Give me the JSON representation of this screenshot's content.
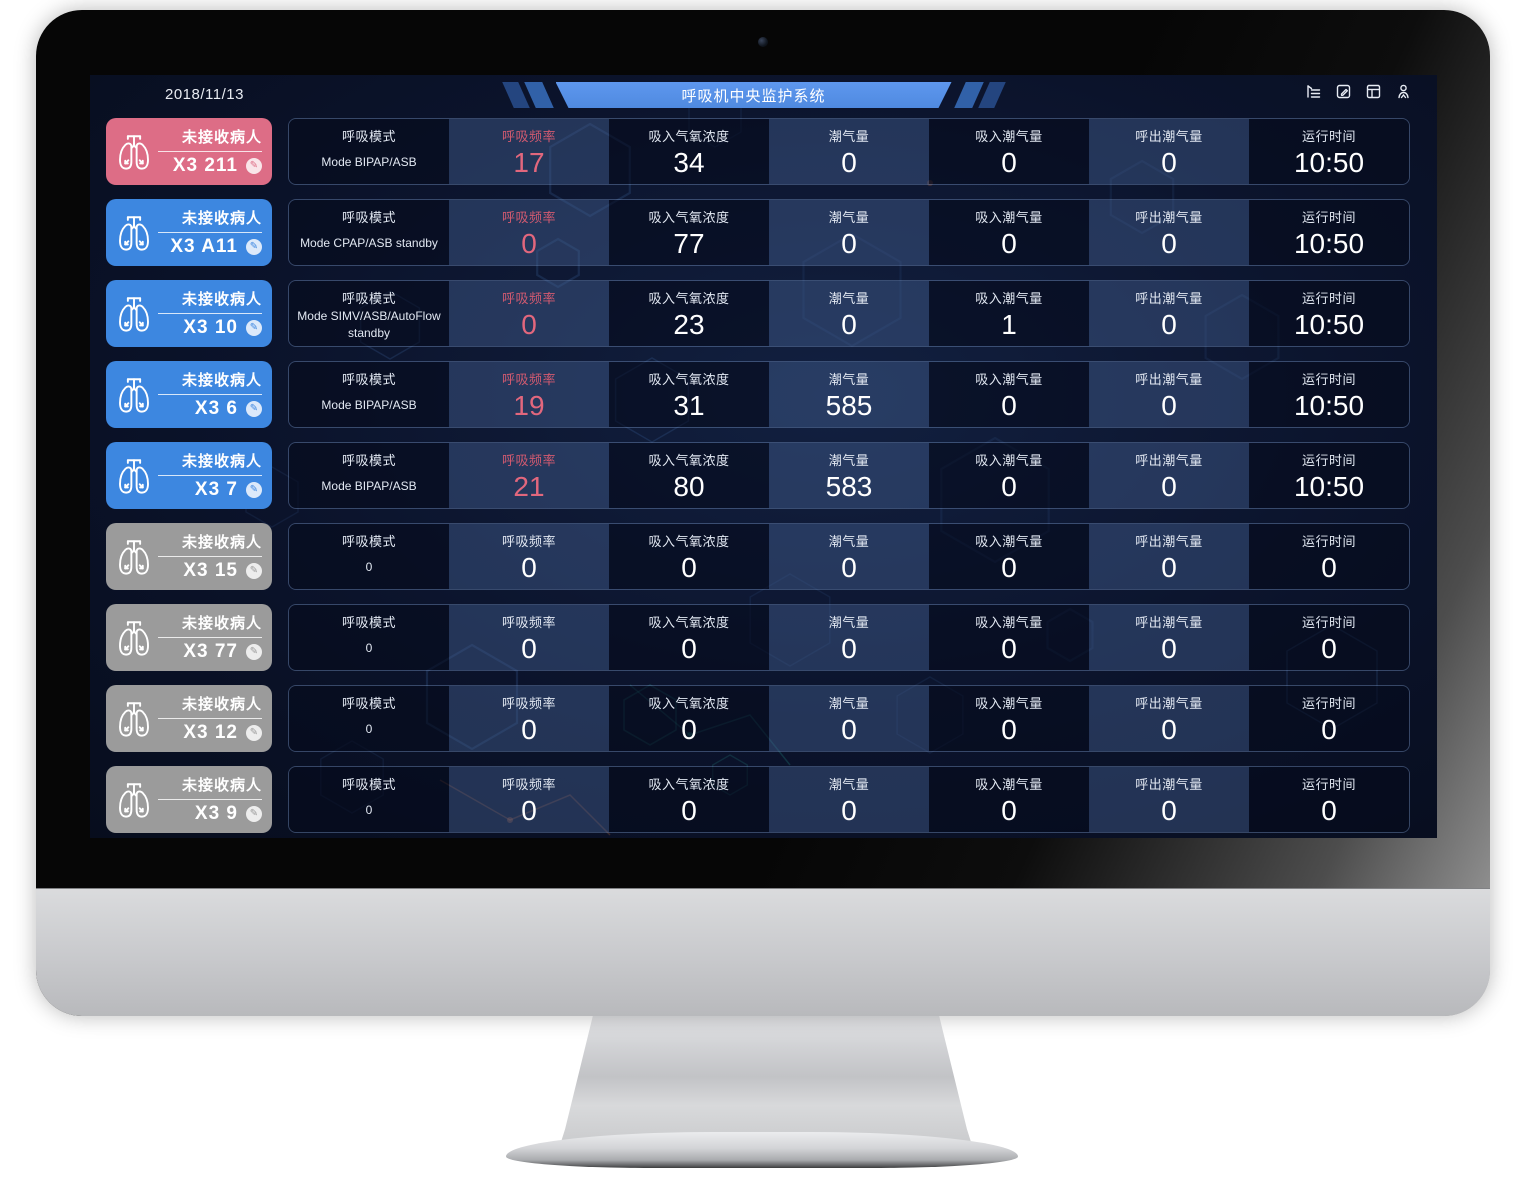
{
  "topbar": {
    "date": "2018/11/13",
    "title": "呼吸机中央监护系统",
    "icons": [
      {
        "name": "tree-menu-icon"
      },
      {
        "name": "edit-note-icon"
      },
      {
        "name": "layout-grid-icon"
      },
      {
        "name": "user-icon"
      }
    ]
  },
  "table": {
    "status_label": "未接收病人",
    "columns": [
      {
        "key": "mode",
        "label": "呼吸模式"
      },
      {
        "key": "rate",
        "label": "呼吸频率"
      },
      {
        "key": "fio2",
        "label": "吸入气氧浓度"
      },
      {
        "key": "tidal",
        "label": "潮气量"
      },
      {
        "key": "insp_tidal",
        "label": "吸入潮气量"
      },
      {
        "key": "exp_tidal",
        "label": "呼出潮气量"
      },
      {
        "key": "runtime",
        "label": "运行时间"
      }
    ],
    "rows": [
      {
        "id": "X3 211",
        "status": "alarm",
        "mode": "Mode BIPAP/ASB",
        "rate": "17",
        "fio2": "34",
        "tidal": "0",
        "insp_tidal": "0",
        "exp_tidal": "0",
        "runtime": "10:50"
      },
      {
        "id": "X3 A11",
        "status": "online",
        "mode": "Mode CPAP/ASB standby",
        "rate": "0",
        "fio2": "77",
        "tidal": "0",
        "insp_tidal": "0",
        "exp_tidal": "0",
        "runtime": "10:50"
      },
      {
        "id": "X3 10",
        "status": "online",
        "mode": "Mode SIMV/ASB/AutoFlow standby",
        "rate": "0",
        "fio2": "23",
        "tidal": "0",
        "insp_tidal": "1",
        "exp_tidal": "0",
        "runtime": "10:50"
      },
      {
        "id": "X3 6",
        "status": "online",
        "mode": "Mode BIPAP/ASB",
        "rate": "19",
        "fio2": "31",
        "tidal": "585",
        "insp_tidal": "0",
        "exp_tidal": "0",
        "runtime": "10:50"
      },
      {
        "id": "X3 7",
        "status": "online",
        "mode": "Mode BIPAP/ASB",
        "rate": "21",
        "fio2": "80",
        "tidal": "583",
        "insp_tidal": "0",
        "exp_tidal": "0",
        "runtime": "10:50"
      },
      {
        "id": "X3 15",
        "status": "offline",
        "mode": "0",
        "rate": "0",
        "fio2": "0",
        "tidal": "0",
        "insp_tidal": "0",
        "exp_tidal": "0",
        "runtime": "0"
      },
      {
        "id": "X3 77",
        "status": "offline",
        "mode": "0",
        "rate": "0",
        "fio2": "0",
        "tidal": "0",
        "insp_tidal": "0",
        "exp_tidal": "0",
        "runtime": "0"
      },
      {
        "id": "X3 12",
        "status": "offline",
        "mode": "0",
        "rate": "0",
        "fio2": "0",
        "tidal": "0",
        "insp_tidal": "0",
        "exp_tidal": "0",
        "runtime": "0"
      },
      {
        "id": "X3 9",
        "status": "offline",
        "mode": "0",
        "rate": "0",
        "fio2": "0",
        "tidal": "0",
        "insp_tidal": "0",
        "exp_tidal": "0",
        "runtime": "0"
      }
    ]
  },
  "colors": {
    "alarm": "#dd6d86",
    "online": "#3d87e0",
    "offline": "#9b9b9b",
    "accent_pink": "#e2677d",
    "banner_blue": "#5590e8"
  }
}
